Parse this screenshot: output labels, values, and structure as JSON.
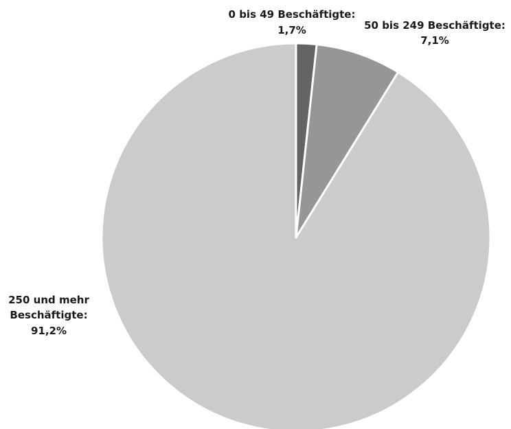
{
  "chart_data": {
    "type": "pie",
    "title": "",
    "slices": [
      {
        "label": "0 bis 49 Beschäftigte:",
        "value_label": "1,7%",
        "value": 1.7,
        "color": "#646464"
      },
      {
        "label": "50 bis 249 Beschäftigte:",
        "value_label": "7,1%",
        "value": 7.1,
        "color": "#969696"
      },
      {
        "label_lines": [
          "250 und mehr",
          "Beschäftigte:"
        ],
        "value_label": "91,2%",
        "value": 91.2,
        "color": "#cbcbcb"
      }
    ],
    "start_angle": "12 o'clock",
    "direction": "clockwise",
    "slice_border_color": "#ffffff",
    "legend": "none"
  }
}
